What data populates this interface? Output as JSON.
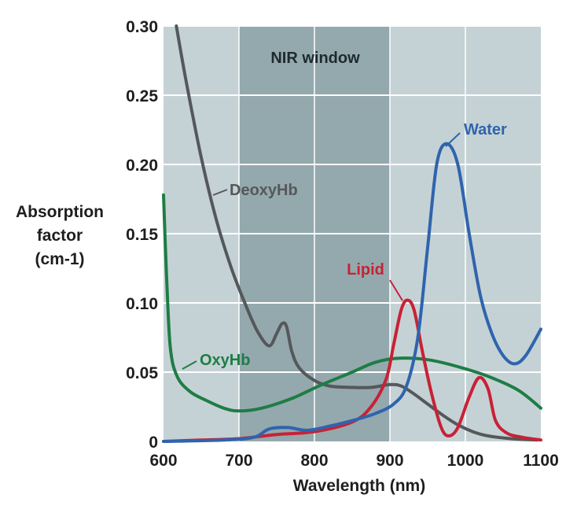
{
  "chart_data": {
    "type": "line",
    "xlabel": "Wavelength (nm)",
    "ylabel_lines": [
      "Absorption",
      "factor",
      "(cm-1)"
    ],
    "xlim": [
      600,
      1100
    ],
    "ylim": [
      0,
      0.3
    ],
    "x_ticks": [
      "600",
      "700",
      "800",
      "900",
      "1000",
      "1100"
    ],
    "y_ticks": [
      "0",
      "0.05",
      "0.10",
      "0.15",
      "0.20",
      "0.25",
      "0.30"
    ],
    "grid": "horizontal",
    "shaded_region": {
      "label": "NIR window",
      "x_range": [
        700,
        900
      ]
    },
    "series": [
      {
        "name": "DeoxyHb",
        "color": "#55585b",
        "points": [
          [
            617,
            0.3
          ],
          [
            630,
            0.26
          ],
          [
            650,
            0.205
          ],
          [
            670,
            0.16
          ],
          [
            690,
            0.125
          ],
          [
            710,
            0.097
          ],
          [
            725,
            0.079
          ],
          [
            740,
            0.069
          ],
          [
            750,
            0.078
          ],
          [
            757,
            0.085
          ],
          [
            763,
            0.083
          ],
          [
            770,
            0.065
          ],
          [
            780,
            0.053
          ],
          [
            800,
            0.044
          ],
          [
            820,
            0.04
          ],
          [
            850,
            0.039
          ],
          [
            875,
            0.039
          ],
          [
            900,
            0.041
          ],
          [
            915,
            0.04
          ],
          [
            930,
            0.035
          ],
          [
            950,
            0.027
          ],
          [
            970,
            0.019
          ],
          [
            990,
            0.012
          ],
          [
            1010,
            0.007
          ],
          [
            1030,
            0.004
          ],
          [
            1060,
            0.002
          ],
          [
            1095,
            0.001
          ]
        ]
      },
      {
        "name": "OxyHb",
        "color": "#1e7d45",
        "points": [
          [
            600,
            0.178
          ],
          [
            604,
            0.12
          ],
          [
            609,
            0.068
          ],
          [
            618,
            0.047
          ],
          [
            635,
            0.036
          ],
          [
            655,
            0.03
          ],
          [
            680,
            0.024
          ],
          [
            700,
            0.022
          ],
          [
            730,
            0.024
          ],
          [
            770,
            0.031
          ],
          [
            810,
            0.041
          ],
          [
            850,
            0.05
          ],
          [
            880,
            0.057
          ],
          [
            910,
            0.06
          ],
          [
            950,
            0.059
          ],
          [
            990,
            0.054
          ],
          [
            1030,
            0.047
          ],
          [
            1070,
            0.037
          ],
          [
            1100,
            0.024
          ]
        ]
      },
      {
        "name": "Lipid",
        "color": "#c72236",
        "points": [
          [
            600,
            0.0
          ],
          [
            650,
            0.001
          ],
          [
            700,
            0.002
          ],
          [
            750,
            0.005
          ],
          [
            800,
            0.007
          ],
          [
            850,
            0.014
          ],
          [
            875,
            0.025
          ],
          [
            895,
            0.045
          ],
          [
            905,
            0.07
          ],
          [
            915,
            0.095
          ],
          [
            923,
            0.102
          ],
          [
            932,
            0.095
          ],
          [
            943,
            0.065
          ],
          [
            955,
            0.035
          ],
          [
            968,
            0.01
          ],
          [
            978,
            0.004
          ],
          [
            990,
            0.01
          ],
          [
            1005,
            0.032
          ],
          [
            1018,
            0.046
          ],
          [
            1030,
            0.038
          ],
          [
            1040,
            0.015
          ],
          [
            1055,
            0.006
          ],
          [
            1075,
            0.003
          ],
          [
            1100,
            0.001
          ]
        ]
      },
      {
        "name": "Water",
        "color": "#2f64ad",
        "points": [
          [
            600,
            0.0
          ],
          [
            680,
            0.001
          ],
          [
            720,
            0.003
          ],
          [
            740,
            0.009
          ],
          [
            765,
            0.01
          ],
          [
            790,
            0.008
          ],
          [
            820,
            0.011
          ],
          [
            850,
            0.015
          ],
          [
            880,
            0.02
          ],
          [
            905,
            0.027
          ],
          [
            922,
            0.04
          ],
          [
            937,
            0.075
          ],
          [
            950,
            0.14
          ],
          [
            962,
            0.2
          ],
          [
            975,
            0.215
          ],
          [
            990,
            0.2
          ],
          [
            1005,
            0.15
          ],
          [
            1020,
            0.105
          ],
          [
            1035,
            0.078
          ],
          [
            1050,
            0.062
          ],
          [
            1065,
            0.056
          ],
          [
            1080,
            0.062
          ],
          [
            1100,
            0.081
          ]
        ]
      }
    ]
  }
}
